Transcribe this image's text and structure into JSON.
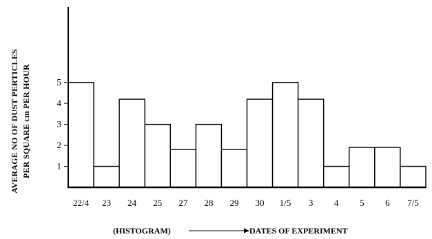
{
  "chart_data": {
    "type": "bar",
    "categories": [
      "22/4",
      "23",
      "24",
      "25",
      "27",
      "28",
      "29",
      "30",
      "1/5",
      "3",
      "4",
      "5",
      "6",
      "7/5"
    ],
    "values": [
      5,
      1,
      4.2,
      3,
      1.8,
      3,
      1.8,
      4.2,
      5,
      4.2,
      1,
      1.9,
      1.9,
      1
    ],
    "yticks": [
      1,
      2,
      3,
      4,
      5
    ],
    "ylim": [
      0,
      8.6
    ],
    "ylabel_line1": "AVERAGE NO OF DUST PERTICLES",
    "ylabel_line2": "PER SQUARE cm PER HOUR",
    "xlabel_left": "(HISTOGRAM)",
    "xlabel_right": "DATES OF EXPERIMENT",
    "grid": false,
    "bar_fill": "#ffffff",
    "bar_stroke": "#000000"
  }
}
